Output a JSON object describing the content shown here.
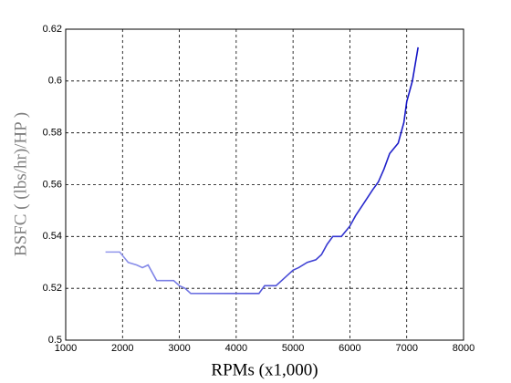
{
  "chart_data": {
    "type": "line",
    "xlabel": "RPMs (x1,000)",
    "ylabel": "BSFC ( (lbs/hr)/HP )",
    "ylabel_color": "#808080",
    "xlim": [
      1000,
      8000
    ],
    "xticks": [
      1000,
      2000,
      3000,
      4000,
      5000,
      6000,
      7000,
      8000
    ],
    "ylim": [
      0.5,
      0.62
    ],
    "yticks": [
      0.5,
      0.52,
      0.54,
      0.56,
      0.58,
      0.6,
      0.62
    ],
    "grid": true,
    "series": [
      {
        "gradient": [
          "#a4aaf2",
          "#0000c0"
        ],
        "x": [
          1700,
          1950,
          2100,
          2250,
          2350,
          2450,
          2600,
          2750,
          2900,
          3000,
          3100,
          3200,
          3500,
          4000,
          4400,
          4500,
          4700,
          4850,
          5000,
          5100,
          5250,
          5400,
          5500,
          5600,
          5700,
          5850,
          6000,
          6100,
          6250,
          6400,
          6500,
          6600,
          6700,
          6850,
          6950,
          7000,
          7100,
          7200
        ],
        "values": [
          0.534,
          0.534,
          0.53,
          0.529,
          0.528,
          0.529,
          0.523,
          0.523,
          0.523,
          0.521,
          0.52,
          0.518,
          0.518,
          0.518,
          0.518,
          0.521,
          0.521,
          0.524,
          0.527,
          0.528,
          0.53,
          0.531,
          0.533,
          0.537,
          0.54,
          0.54,
          0.544,
          0.548,
          0.553,
          0.558,
          0.561,
          0.566,
          0.572,
          0.576,
          0.584,
          0.592,
          0.6,
          0.613
        ]
      }
    ]
  }
}
